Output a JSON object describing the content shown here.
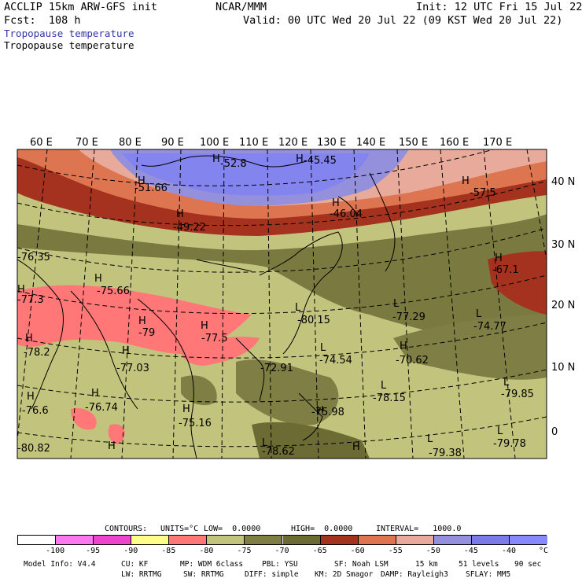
{
  "header": {
    "title_left": "ACCLIP 15km ARW-GFS init",
    "title_center": "NCAR/MMM",
    "init": "Init: 12 UTC Fri 15 Jul 22",
    "fcst": "Fcst:  108 h",
    "valid": "Valid: 00 UTC Wed 20 Jul 22 (09 KST Wed 20 Jul 22)",
    "field1": "Tropopause temperature",
    "field2": "Tropopause temperature",
    "field1_color": "#3333aa"
  },
  "lon_labels": [
    "60 E",
    "70 E",
    "80 E",
    "90 E",
    "100 E",
    "110 E",
    "120 E",
    "130 E",
    "140 E",
    "150 E",
    "160 E",
    "170 E"
  ],
  "lat_labels": [
    "40 N",
    "30 N",
    "20 N",
    "10 N",
    "0"
  ],
  "map_annotations": [
    {
      "text": "-52.8"
    },
    {
      "text": "-45.45"
    },
    {
      "text": "-51.66"
    },
    {
      "text": "-57.5"
    },
    {
      "text": "-46.04"
    },
    {
      "text": "-49.22"
    },
    {
      "text": "-67.1"
    },
    {
      "text": "-76.35"
    },
    {
      "text": "-75.66"
    },
    {
      "text": "-77.3"
    },
    {
      "text": "-79"
    },
    {
      "text": "-80.15"
    },
    {
      "text": "-77.29"
    },
    {
      "text": "-74.77"
    },
    {
      "text": "-77.5"
    },
    {
      "text": "-78.2"
    },
    {
      "text": "-74.54"
    },
    {
      "text": "-70.62"
    },
    {
      "text": "-77.03"
    },
    {
      "text": "-72.91"
    },
    {
      "text": "-78.15"
    },
    {
      "text": "-79.85"
    },
    {
      "text": "-76.6"
    },
    {
      "text": "-76.74"
    },
    {
      "text": "-75.98"
    },
    {
      "text": "-75.16"
    },
    {
      "text": "-80.82"
    },
    {
      "text": "-78.62"
    },
    {
      "text": "-79.38"
    },
    {
      "text": "-79.78"
    }
  ],
  "contour_info": {
    "contours": "CONTOURS:",
    "units": "UNITS=°C",
    "low": "LOW=  0.0000",
    "high": "HIGH=  0.0000",
    "interval": "INTERVAL=   1000.0"
  },
  "colorbar": {
    "colors": [
      "#ffffff",
      "#ff77ee",
      "#ee44cc",
      "#ffff88",
      "#ff7777",
      "#c2c47e",
      "#7f7f45",
      "#6b6b33",
      "#a5321e",
      "#dc7550",
      "#e8aa9a",
      "#9590dc",
      "#7a7ae8",
      "#8888ff"
    ],
    "labels": [
      "-100",
      "-95",
      "-90",
      "-85",
      "-80",
      "-75",
      "-70",
      "-65",
      "-60",
      "-55",
      "-50",
      "-45",
      "-40",
      "°C"
    ]
  },
  "footer": {
    "row1": [
      "Model Info: V4.4",
      "CU: KF",
      "MP: WDM 6class",
      "PBL: YSU",
      "SF: Noah LSM",
      "15 km",
      "51 levels",
      "90 sec"
    ],
    "row2": [
      "LW: RRTMG",
      "SW: RRTMG",
      "DIFF: simple",
      "KM: 2D Smagor",
      "DAMP: Rayleigh3",
      "SFLAY: MM5"
    ]
  }
}
